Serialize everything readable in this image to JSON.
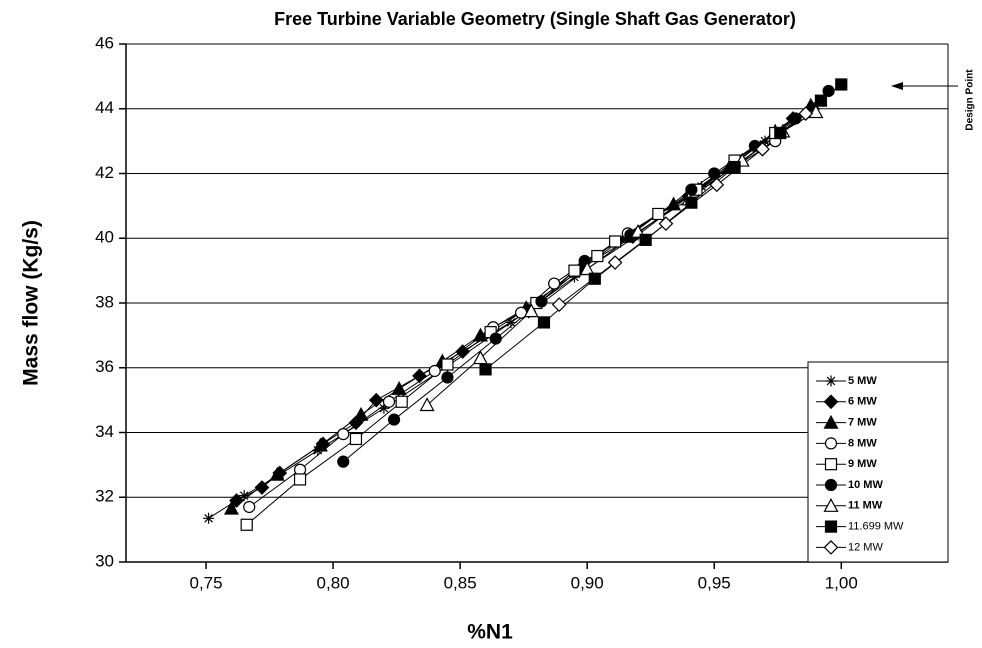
{
  "chart_data": {
    "type": "line",
    "title": "Free Turbine Variable Geometry (Single Shaft Gas Generator)",
    "x_label": "%N1",
    "y_label": "Mass flow (Kg/s)",
    "annotation": "Design Point",
    "xlim": [
      0.7185,
      1.042
    ],
    "ylim": [
      30,
      46
    ],
    "xticks": [
      {
        "value": 0.75,
        "label": "0,75"
      },
      {
        "value": 0.8,
        "label": "0,80"
      },
      {
        "value": 0.85,
        "label": "0,85"
      },
      {
        "value": 0.9,
        "label": "0,90"
      },
      {
        "value": 0.95,
        "label": "0,95"
      },
      {
        "value": 1.0,
        "label": "1,00"
      }
    ],
    "yticks": [
      30,
      32,
      34,
      36,
      38,
      40,
      42,
      44,
      46
    ],
    "grid": true,
    "legend": "lower right",
    "series": [
      {
        "name": "5 MW",
        "color": "#000000",
        "marker": "star",
        "filled": true,
        "label_bold": true,
        "x": [
          0.751,
          0.765,
          0.779,
          0.794,
          0.82,
          0.845,
          0.87,
          0.895,
          0.92,
          0.945,
          0.97,
          0.99
        ],
        "values": [
          31.35,
          32.05,
          32.7,
          33.45,
          34.75,
          36.05,
          37.4,
          38.8,
          40.1,
          41.6,
          43.0,
          44.1
        ]
      },
      {
        "name": "6 MW",
        "color": "#000000",
        "marker": "diamond",
        "filled": true,
        "label_bold": true,
        "x": [
          0.762,
          0.772,
          0.779,
          0.796,
          0.809,
          0.817,
          0.834,
          0.851,
          0.877,
          0.898,
          0.918,
          0.94,
          0.958,
          0.981
        ],
        "values": [
          31.9,
          32.3,
          32.75,
          33.65,
          34.3,
          35.0,
          35.75,
          36.5,
          37.75,
          39.1,
          40.05,
          41.3,
          42.3,
          43.7
        ]
      },
      {
        "name": "7 MW",
        "color": "#000000",
        "marker": "triangle",
        "filled": true,
        "label_bold": true,
        "x": [
          0.76,
          0.778,
          0.795,
          0.811,
          0.826,
          0.843,
          0.858,
          0.876,
          0.898,
          0.915,
          0.934,
          0.956,
          0.974,
          0.988
        ],
        "values": [
          31.65,
          32.7,
          33.6,
          34.55,
          35.35,
          36.2,
          37.0,
          37.85,
          39.05,
          40.05,
          41.05,
          42.2,
          43.3,
          44.1
        ]
      },
      {
        "name": "8 MW",
        "color": "#000000",
        "marker": "circle",
        "filled": false,
        "label_bold": true,
        "x": [
          0.767,
          0.787,
          0.804,
          0.822,
          0.84,
          0.863,
          0.874,
          0.887,
          0.916,
          0.942,
          0.974
        ],
        "values": [
          31.7,
          32.85,
          33.95,
          34.95,
          35.9,
          37.25,
          37.7,
          38.6,
          40.15,
          41.4,
          43.0
        ]
      },
      {
        "name": "9 MW",
        "color": "#000000",
        "marker": "square",
        "filled": false,
        "label_bold": true,
        "x": [
          0.766,
          0.787,
          0.809,
          0.827,
          0.845,
          0.862,
          0.88,
          0.895,
          0.904,
          0.911,
          0.928,
          0.943,
          0.958,
          0.974
        ],
        "values": [
          31.15,
          32.55,
          33.8,
          34.95,
          36.1,
          37.1,
          38.0,
          39.0,
          39.45,
          39.9,
          40.75,
          41.5,
          42.4,
          43.25
        ]
      },
      {
        "name": "10 MW",
        "color": "#000000",
        "marker": "circle",
        "filled": true,
        "label_bold": true,
        "x": [
          0.804,
          0.824,
          0.845,
          0.864,
          0.882,
          0.899,
          0.917,
          0.941,
          0.95,
          0.966,
          0.982,
          0.995
        ],
        "values": [
          33.1,
          34.4,
          35.7,
          36.9,
          38.05,
          39.3,
          40.1,
          41.5,
          42.0,
          42.85,
          43.7,
          44.55
        ]
      },
      {
        "name": "11 MW",
        "color": "#000000",
        "marker": "triangle",
        "filled": false,
        "label_bold": true,
        "x": [
          0.837,
          0.858,
          0.878,
          0.9,
          0.92,
          0.94,
          0.961,
          0.977,
          0.99
        ],
        "values": [
          34.85,
          36.3,
          37.75,
          39.05,
          40.2,
          41.2,
          42.4,
          43.3,
          43.9
        ]
      },
      {
        "name": "11.699 MW",
        "color": "#000000",
        "marker": "square",
        "filled": true,
        "label_bold": false,
        "x": [
          0.86,
          0.883,
          0.903,
          0.923,
          0.941,
          0.958,
          0.976,
          0.992,
          1.0
        ],
        "values": [
          35.95,
          37.4,
          38.75,
          39.95,
          41.1,
          42.2,
          43.25,
          44.25,
          44.75
        ]
      },
      {
        "name": "12 MW",
        "color": "#000000",
        "marker": "diamond",
        "filled": false,
        "label_bold": false,
        "x": [
          0.889,
          0.911,
          0.931,
          0.951,
          0.969,
          0.986
        ],
        "values": [
          37.95,
          39.25,
          40.45,
          41.65,
          42.75,
          43.85
        ]
      }
    ]
  }
}
